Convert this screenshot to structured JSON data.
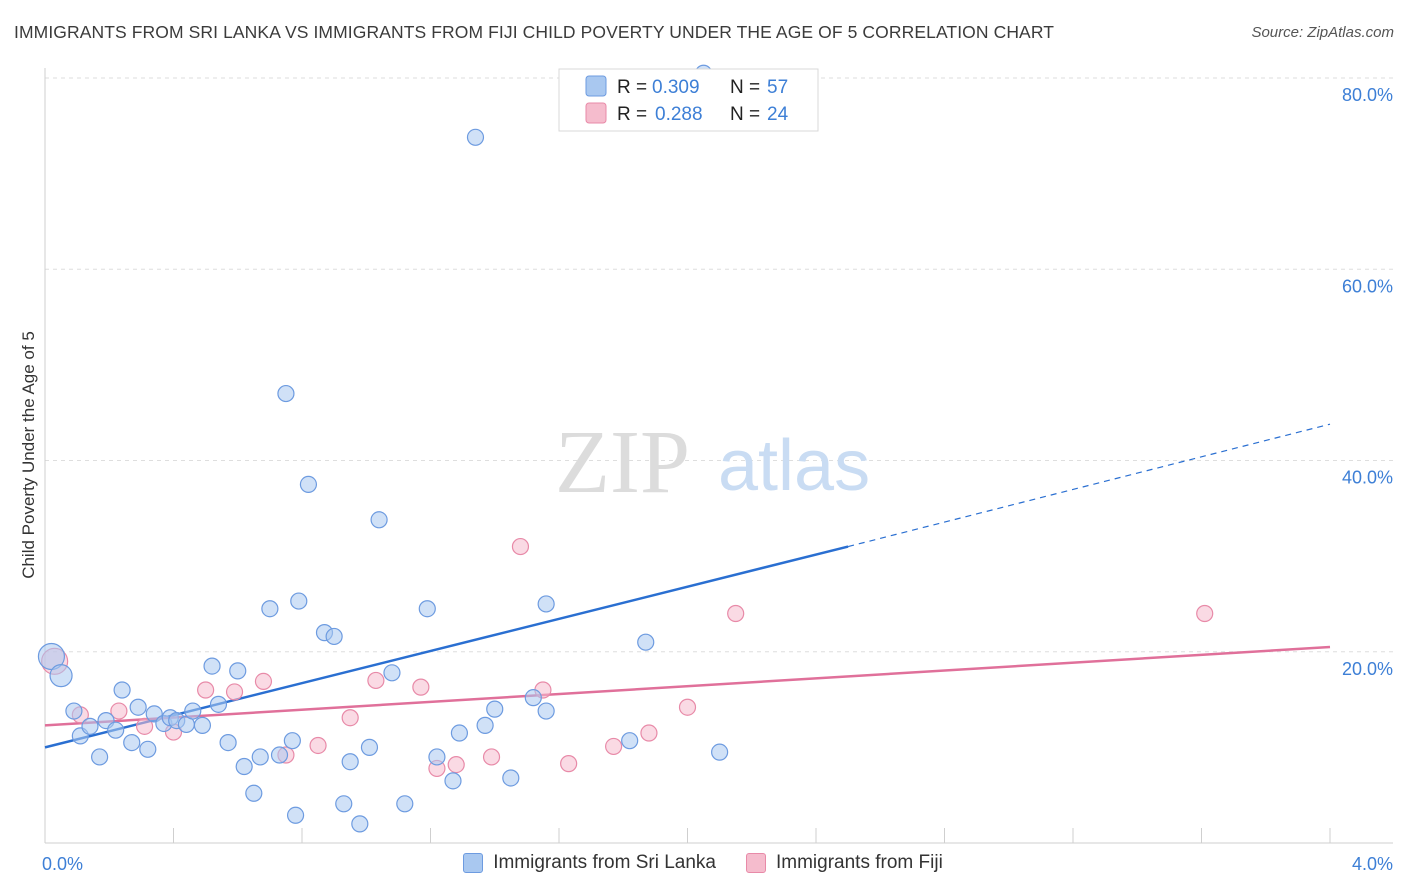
{
  "title": "IMMIGRANTS FROM SRI LANKA VS IMMIGRANTS FROM FIJI CHILD POVERTY UNDER THE AGE OF 5 CORRELATION CHART",
  "source": "Source: ZipAtlas.com",
  "watermark": {
    "zip": "ZIP",
    "atlas": "atlas"
  },
  "legend": {
    "rows": [
      {
        "r_label": "R =",
        "r_value": "0.309",
        "n_label": "N =",
        "n_value": "57"
      },
      {
        "r_label": "R =",
        "r_value": "0.288",
        "n_label": "N =",
        "n_value": "24"
      }
    ]
  },
  "colors": {
    "blue_fill": "#a9c8f0",
    "blue_stroke": "#6d9be0",
    "blue_line": "#2a6fd1",
    "pink_fill": "#f5bccd",
    "pink_stroke": "#e88aa8",
    "pink_line": "#e0709a",
    "tick_text": "#3d7fd6"
  },
  "chart_data": {
    "type": "scatter",
    "title": "IMMIGRANTS FROM SRI LANKA VS IMMIGRANTS FROM FIJI CHILD POVERTY UNDER THE AGE OF 5 CORRELATION CHART",
    "xlabel": "",
    "ylabel": "Child Poverty Under the Age of 5",
    "xlim": [
      0,
      4.0
    ],
    "ylim": [
      0,
      82
    ],
    "x_tick_labels": [
      "0.0%",
      "4.0%"
    ],
    "y_ticks": [
      20,
      40,
      60,
      80
    ],
    "y_tick_labels": [
      "20.0%",
      "40.0%",
      "60.0%",
      "80.0%"
    ],
    "grid": true,
    "legend_position": "top-center",
    "series": [
      {
        "name": "Immigrants from Sri Lanka",
        "color": "#a9c8f0",
        "trend": {
          "x0": 0.0,
          "y0": 10.0,
          "x1": 2.5,
          "y1": 31.0,
          "dashed_to_x": 4.0,
          "dashed_to_y": 43.8
        },
        "points": [
          [
            0.02,
            19.5
          ],
          [
            0.05,
            17.5
          ],
          [
            0.09,
            13.8
          ],
          [
            0.11,
            11.2
          ],
          [
            0.14,
            12.2
          ],
          [
            0.17,
            9.0
          ],
          [
            0.19,
            12.8
          ],
          [
            0.22,
            11.8
          ],
          [
            0.24,
            16.0
          ],
          [
            0.27,
            10.5
          ],
          [
            0.29,
            14.2
          ],
          [
            0.32,
            9.8
          ],
          [
            0.34,
            13.5
          ],
          [
            0.37,
            12.5
          ],
          [
            0.39,
            13.1
          ],
          [
            0.41,
            12.8
          ],
          [
            0.44,
            12.4
          ],
          [
            0.46,
            13.8
          ],
          [
            0.49,
            12.3
          ],
          [
            0.52,
            18.5
          ],
          [
            0.54,
            14.5
          ],
          [
            0.57,
            10.5
          ],
          [
            0.6,
            18.0
          ],
          [
            0.62,
            8.0
          ],
          [
            0.65,
            5.2
          ],
          [
            0.67,
            9.0
          ],
          [
            0.7,
            24.5
          ],
          [
            0.73,
            9.2
          ],
          [
            0.75,
            47.0
          ],
          [
            0.77,
            10.7
          ],
          [
            0.78,
            2.9
          ],
          [
            0.79,
            25.3
          ],
          [
            0.82,
            37.5
          ],
          [
            0.87,
            22.0
          ],
          [
            0.9,
            21.6
          ],
          [
            0.93,
            4.1
          ],
          [
            0.95,
            8.5
          ],
          [
            0.98,
            2.0
          ],
          [
            1.01,
            10.0
          ],
          [
            1.04,
            33.8
          ],
          [
            1.08,
            17.8
          ],
          [
            1.12,
            4.1
          ],
          [
            1.19,
            24.5
          ],
          [
            1.22,
            9.0
          ],
          [
            1.27,
            6.5
          ],
          [
            1.29,
            11.5
          ],
          [
            1.34,
            73.8
          ],
          [
            1.37,
            12.3
          ],
          [
            1.4,
            14.0
          ],
          [
            1.45,
            6.8
          ],
          [
            1.52,
            15.2
          ],
          [
            1.56,
            25.0
          ],
          [
            1.56,
            13.8
          ],
          [
            1.82,
            10.7
          ],
          [
            1.87,
            21.0
          ],
          [
            2.05,
            80.5
          ],
          [
            2.1,
            9.5
          ]
        ]
      },
      {
        "name": "Immigrants from Fiji",
        "color": "#f5bccd",
        "trend": {
          "x0": 0.0,
          "y0": 12.3,
          "x1": 4.0,
          "y1": 20.5
        },
        "points": [
          [
            0.03,
            19.0
          ],
          [
            0.11,
            13.4
          ],
          [
            0.23,
            13.8
          ],
          [
            0.31,
            12.2
          ],
          [
            0.4,
            11.6
          ],
          [
            0.5,
            16.0
          ],
          [
            0.59,
            15.8
          ],
          [
            0.68,
            16.9
          ],
          [
            0.75,
            9.2
          ],
          [
            0.85,
            10.2
          ],
          [
            0.95,
            13.1
          ],
          [
            1.03,
            17.0
          ],
          [
            1.17,
            16.3
          ],
          [
            1.22,
            7.8
          ],
          [
            1.28,
            8.2
          ],
          [
            1.39,
            9.0
          ],
          [
            1.48,
            31.0
          ],
          [
            1.55,
            16.0
          ],
          [
            1.63,
            8.3
          ],
          [
            1.77,
            10.1
          ],
          [
            1.88,
            11.5
          ],
          [
            2.0,
            14.2
          ],
          [
            2.15,
            24.0
          ],
          [
            3.61,
            24.0
          ]
        ]
      }
    ]
  },
  "bottom_legend": [
    "Immigrants from Sri Lanka",
    "Immigrants from Fiji"
  ]
}
